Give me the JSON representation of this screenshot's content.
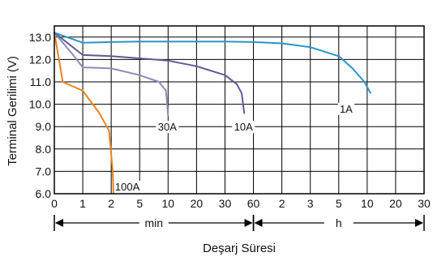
{
  "chart_data": {
    "type": "line",
    "title": "",
    "xlabel": "Deşarj Süresi",
    "ylabel": "Terminal Gerilimi (V)",
    "ylim": [
      6.0,
      13.5
    ],
    "y_ticks": [
      "6.0",
      "7.0",
      "8.0",
      "9.0",
      "10.0",
      "11.0",
      "12.0",
      "13.0"
    ],
    "x_scale": "piecewise-log",
    "x_ticks": [
      "0",
      "1",
      "2",
      "5",
      "10",
      "20",
      "30",
      "60",
      "2",
      "3",
      "5",
      "10",
      "20",
      "30"
    ],
    "x_tick_minutes": [
      0,
      1,
      2,
      5,
      10,
      20,
      30,
      60,
      120,
      180,
      300,
      600,
      1200,
      1800
    ],
    "time_ranges": [
      {
        "label": "min",
        "from_minutes": 0,
        "to_minutes": 60
      },
      {
        "label": "h",
        "from_minutes": 60,
        "to_minutes": 1800
      }
    ],
    "grid": true,
    "series": [
      {
        "name": "100A",
        "color": "#e8821e",
        "points": [
          [
            0,
            13.2
          ],
          [
            0.3,
            11.0
          ],
          [
            1,
            10.6
          ],
          [
            1.5,
            9.6
          ],
          [
            1.9,
            8.8
          ],
          [
            2.1,
            7.0
          ],
          [
            2.15,
            6.0
          ]
        ]
      },
      {
        "name": "30A",
        "color": "#8d8cb8",
        "points": [
          [
            0,
            13.2
          ],
          [
            0.6,
            12.3
          ],
          [
            1,
            11.65
          ],
          [
            2,
            11.6
          ],
          [
            5,
            11.3
          ],
          [
            8,
            11.0
          ],
          [
            9.5,
            10.6
          ],
          [
            10,
            9.5
          ]
        ]
      },
      {
        "name": "10A",
        "color": "#5f5a94",
        "points": [
          [
            0,
            13.2
          ],
          [
            1,
            12.2
          ],
          [
            2,
            12.15
          ],
          [
            5,
            12.05
          ],
          [
            10,
            11.95
          ],
          [
            20,
            11.7
          ],
          [
            30,
            11.3
          ],
          [
            40,
            10.9
          ],
          [
            45,
            10.5
          ],
          [
            48,
            9.6
          ]
        ]
      },
      {
        "name": "1A",
        "color": "#2b93c8",
        "points": [
          [
            0,
            13.2
          ],
          [
            1,
            12.75
          ],
          [
            2,
            12.78
          ],
          [
            5,
            12.8
          ],
          [
            10,
            12.8
          ],
          [
            20,
            12.8
          ],
          [
            30,
            12.8
          ],
          [
            60,
            12.78
          ],
          [
            120,
            12.72
          ],
          [
            180,
            12.55
          ],
          [
            300,
            12.15
          ],
          [
            420,
            11.6
          ],
          [
            560,
            11.0
          ],
          [
            650,
            10.5
          ]
        ]
      }
    ]
  }
}
